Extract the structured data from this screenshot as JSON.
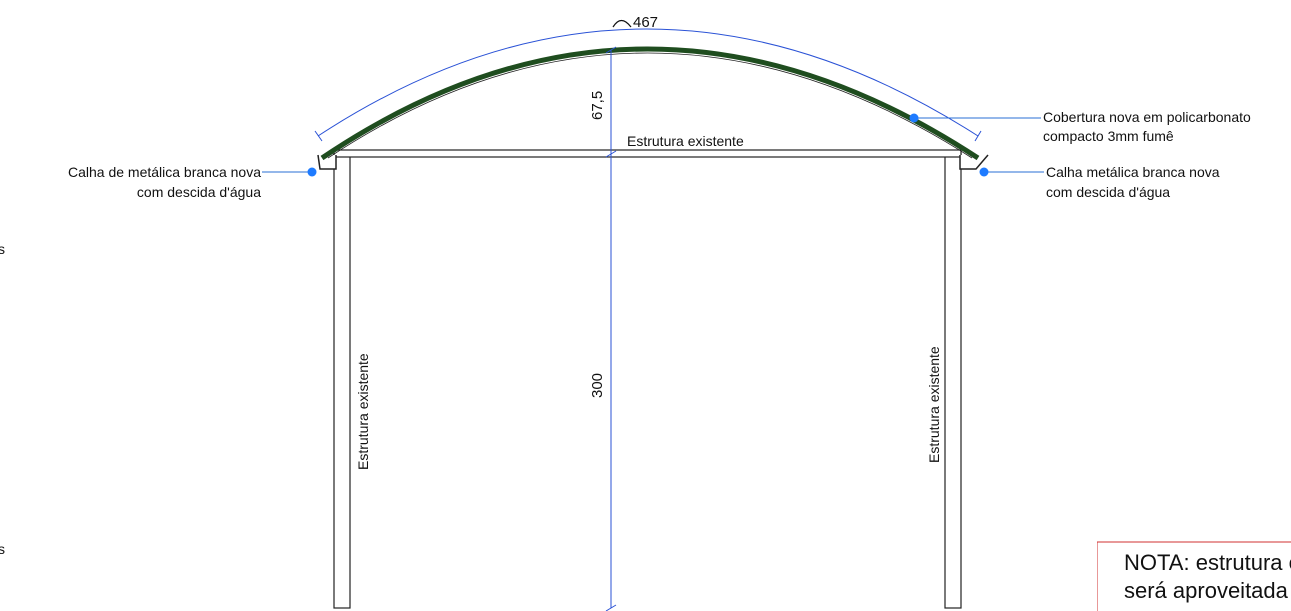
{
  "labels": {
    "arc_length": "467",
    "rise": "67,5",
    "height": "300",
    "beam": "Estrutura existente",
    "left_column": "Estrutura existente",
    "right_column": "Estrutura existente",
    "left_gutter_line1": "Calha de metálica branca nova",
    "left_gutter_line2": "com descida d'água",
    "right_gutter_line1": "Calha metálica branca nova",
    "right_gutter_line2": "com descida d'água",
    "cover_line1": "Cobertura nova em policarbonato",
    "cover_line2": "compacto 3mm fumê",
    "margin_mark_1": "s",
    "margin_mark_2": "s",
    "note_line1": "NOTA: estrutura existente",
    "note_line2": "será aproveitada"
  },
  "colors": {
    "cover": "#1f4d1f",
    "dimension": "#2a52d6",
    "leader": "#2a6fd6",
    "note_border": "#d23030",
    "structure": "#222222"
  }
}
